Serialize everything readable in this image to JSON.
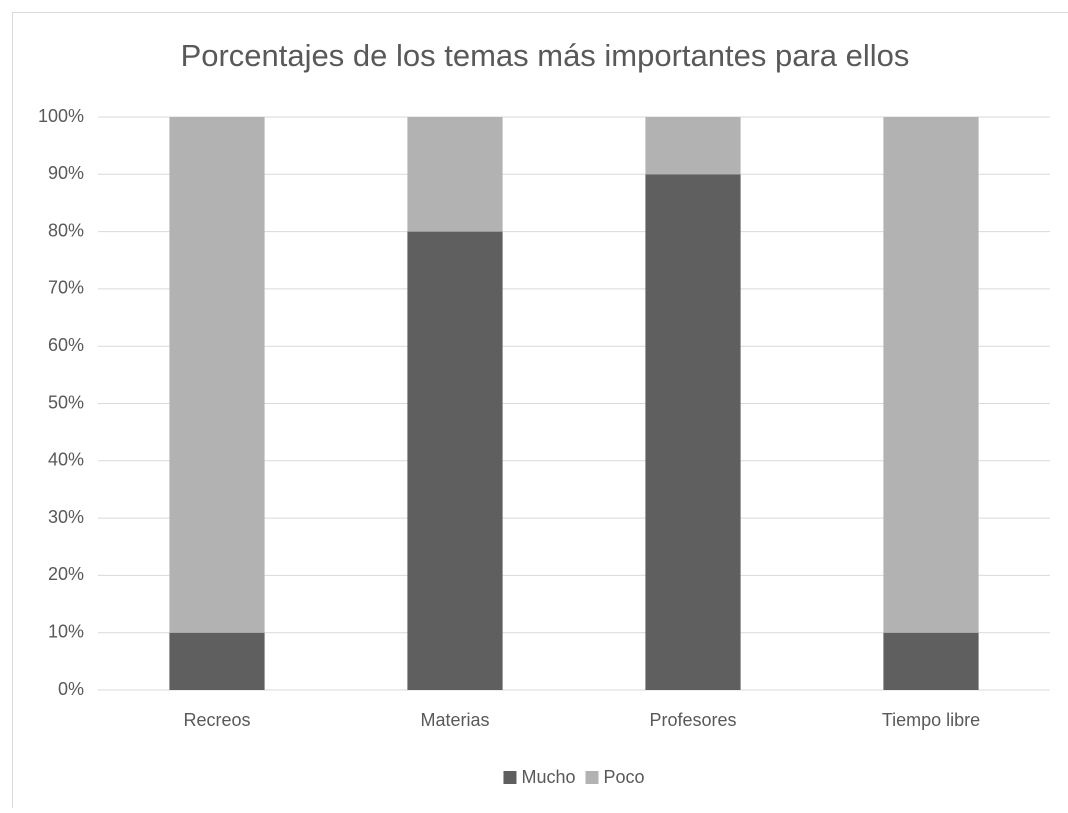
{
  "chart_data": {
    "type": "stacked_bar",
    "title": "Porcentajes de los temas más importantes para ellos",
    "categories": [
      "Recreos",
      "Materias",
      "Profesores",
      "Tiempo libre"
    ],
    "series": [
      {
        "name": "Mucho",
        "color": "#5f5f5f",
        "values": [
          10,
          80,
          90,
          10
        ]
      },
      {
        "name": "Poco",
        "color": "#b2b2b2",
        "values": [
          90,
          20,
          10,
          90
        ]
      }
    ],
    "ylim": [
      0,
      100
    ],
    "yticks": [
      {
        "value": 0,
        "label": "0%"
      },
      {
        "value": 10,
        "label": "10%"
      },
      {
        "value": 20,
        "label": "20%"
      },
      {
        "value": 30,
        "label": "30%"
      },
      {
        "value": 40,
        "label": "40%"
      },
      {
        "value": 50,
        "label": "50%"
      },
      {
        "value": 60,
        "label": "60%"
      },
      {
        "value": 70,
        "label": "70%"
      },
      {
        "value": 80,
        "label": "80%"
      },
      {
        "value": 90,
        "label": "90%"
      },
      {
        "value": 100,
        "label": "100%"
      }
    ],
    "grid": true,
    "legend": "bottom"
  }
}
